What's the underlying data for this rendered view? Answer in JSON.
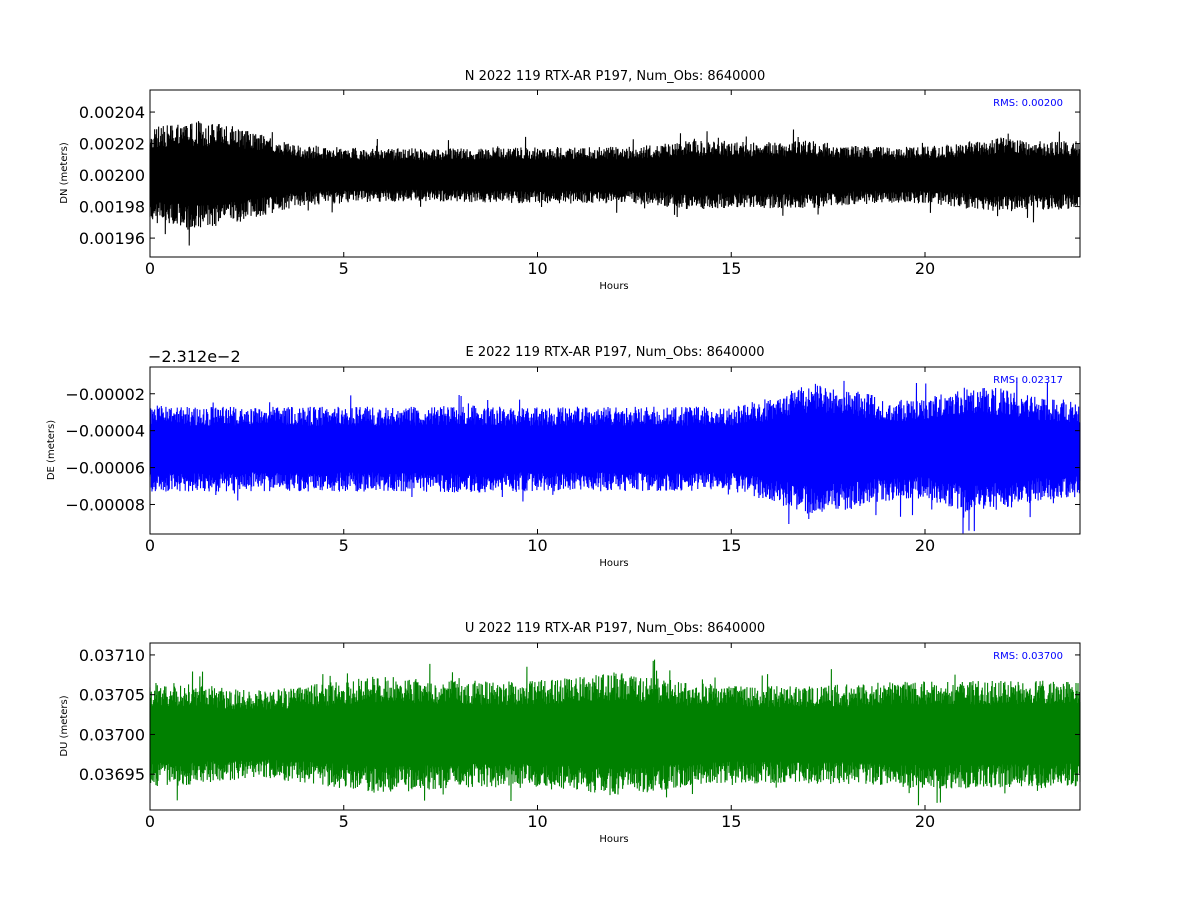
{
  "chart_data": [
    {
      "type": "line",
      "title": "N 2022 119 RTX-AR  P197, Num_Obs: 8640000",
      "xlabel": "Hours",
      "ylabel": "DN (meters)",
      "xlim": [
        0,
        24
      ],
      "ylim": [
        0.001948,
        0.002054
      ],
      "x_ticks": [
        0,
        5,
        10,
        15,
        20
      ],
      "x_tick_labels": [
        "0",
        "5",
        "10",
        "15",
        "20"
      ],
      "y_ticks": [
        0.00196,
        0.00198,
        0.002,
        0.00202,
        0.00204
      ],
      "y_tick_labels": [
        "0.00196",
        "0.00198",
        "0.00200",
        "0.00202",
        "0.00204"
      ],
      "y_offset_label": "",
      "annotation": "RMS:  0.00200",
      "color": "#000000",
      "series": [
        {
          "x": [
            0,
            1,
            2,
            3,
            4,
            5,
            6,
            7,
            8,
            9,
            10,
            11,
            12,
            13,
            14,
            15,
            16,
            17,
            18,
            19,
            20,
            21,
            22,
            23,
            24
          ],
          "center": [
            0.002,
            0.002,
            0.002,
            0.002,
            0.002,
            0.002,
            0.002,
            0.002,
            0.002,
            0.002,
            0.002,
            0.002,
            0.002,
            0.002,
            0.002,
            0.002,
            0.002,
            0.002,
            0.002,
            0.002,
            0.002,
            0.002,
            0.002,
            0.002,
            0.002
          ],
          "half_range": [
            3e-05,
            3.4e-05,
            3.2e-05,
            2.5e-05,
            1.9e-05,
            1.8e-05,
            1.7e-05,
            1.7e-05,
            1.7e-05,
            1.8e-05,
            1.8e-05,
            1.8e-05,
            1.8e-05,
            1.9e-05,
            2.2e-05,
            2.1e-05,
            2.1e-05,
            2.2e-05,
            1.9e-05,
            1.8e-05,
            1.8e-05,
            2.1e-05,
            2.4e-05,
            2.2e-05,
            2.2e-05
          ]
        }
      ]
    },
    {
      "type": "line",
      "title": "E 2022 119 RTX-AR  P197, Num_Obs: 8640000",
      "xlabel": "Hours",
      "ylabel": "DE (meters)",
      "xlim": [
        0,
        24
      ],
      "ylim": [
        -9.6e-05,
        -5.5e-06
      ],
      "x_ticks": [
        0,
        5,
        10,
        15,
        20
      ],
      "x_tick_labels": [
        "0",
        "5",
        "10",
        "15",
        "20"
      ],
      "y_ticks": [
        -8e-05,
        -6e-05,
        -4e-05,
        -2e-05
      ],
      "y_tick_labels": [
        "−0.00008",
        "−0.00006",
        "−0.00004",
        "−0.00002"
      ],
      "y_offset_label": "−2.312e−2",
      "annotation": "RMS:  0.02317",
      "color": "#0000ff",
      "series": [
        {
          "x": [
            0,
            1,
            2,
            3,
            4,
            5,
            6,
            7,
            8,
            9,
            10,
            11,
            12,
            13,
            14,
            15,
            16,
            17,
            18,
            19,
            20,
            21,
            22,
            23,
            24
          ],
          "center": [
            -5e-05,
            -5e-05,
            -5e-05,
            -5e-05,
            -5e-05,
            -5e-05,
            -5e-05,
            -5e-05,
            -5e-05,
            -5e-05,
            -5e-05,
            -5e-05,
            -5e-05,
            -5e-05,
            -5e-05,
            -5e-05,
            -5e-05,
            -5e-05,
            -5e-05,
            -5e-05,
            -5e-05,
            -5e-05,
            -5e-05,
            -5e-05,
            -5e-05
          ],
          "half_range": [
            2.4e-05,
            2.3e-05,
            2.3e-05,
            2.3e-05,
            2.3e-05,
            2.3e-05,
            2.3e-05,
            2.3e-05,
            2.4e-05,
            2.3e-05,
            2.3e-05,
            2.3e-05,
            2.3e-05,
            2.3e-05,
            2.3e-05,
            2.3e-05,
            2.8e-05,
            3.6e-05,
            3.3e-05,
            2.8e-05,
            2.7e-05,
            3.4e-05,
            3.3e-05,
            2.8e-05,
            2.6e-05
          ]
        }
      ]
    },
    {
      "type": "line",
      "title": "U 2022 119 RTX-AR  P197, Num_Obs: 8640000",
      "xlabel": "Hours",
      "ylabel": "DU (meters)",
      "xlim": [
        0,
        24
      ],
      "ylim": [
        0.036905,
        0.037115
      ],
      "x_ticks": [
        0,
        5,
        10,
        15,
        20
      ],
      "x_tick_labels": [
        "0",
        "5",
        "10",
        "15",
        "20"
      ],
      "y_ticks": [
        0.03695,
        0.037,
        0.03705,
        0.0371
      ],
      "y_tick_labels": [
        "0.03695",
        "0.03700",
        "0.03705",
        "0.03710"
      ],
      "y_offset_label": "",
      "annotation": "RMS:  0.03700",
      "color": "#008000",
      "series": [
        {
          "x": [
            0,
            1,
            2,
            3,
            4,
            5,
            6,
            7,
            8,
            9,
            10,
            11,
            12,
            13,
            14,
            15,
            16,
            17,
            18,
            19,
            20,
            21,
            22,
            23,
            24
          ],
          "center": [
            0.037,
            0.037,
            0.037,
            0.037,
            0.037,
            0.037,
            0.037,
            0.037,
            0.037,
            0.037,
            0.037,
            0.037,
            0.037,
            0.037,
            0.037,
            0.037,
            0.037,
            0.037,
            0.037,
            0.037,
            0.037,
            0.037,
            0.037,
            0.037,
            0.037
          ],
          "half_range": [
            6.5e-05,
            6.5e-05,
            5.8e-05,
            5.5e-05,
            6.2e-05,
            6.8e-05,
            7.5e-05,
            7e-05,
            6.8e-05,
            6.7e-05,
            6.8e-05,
            7.2e-05,
            7.8e-05,
            7.2e-05,
            6.5e-05,
            6.2e-05,
            6.2e-05,
            6.2e-05,
            6.3e-05,
            6.6e-05,
            6.8e-05,
            6.8e-05,
            6.8e-05,
            6.8e-05,
            6.5e-05
          ]
        }
      ]
    }
  ]
}
